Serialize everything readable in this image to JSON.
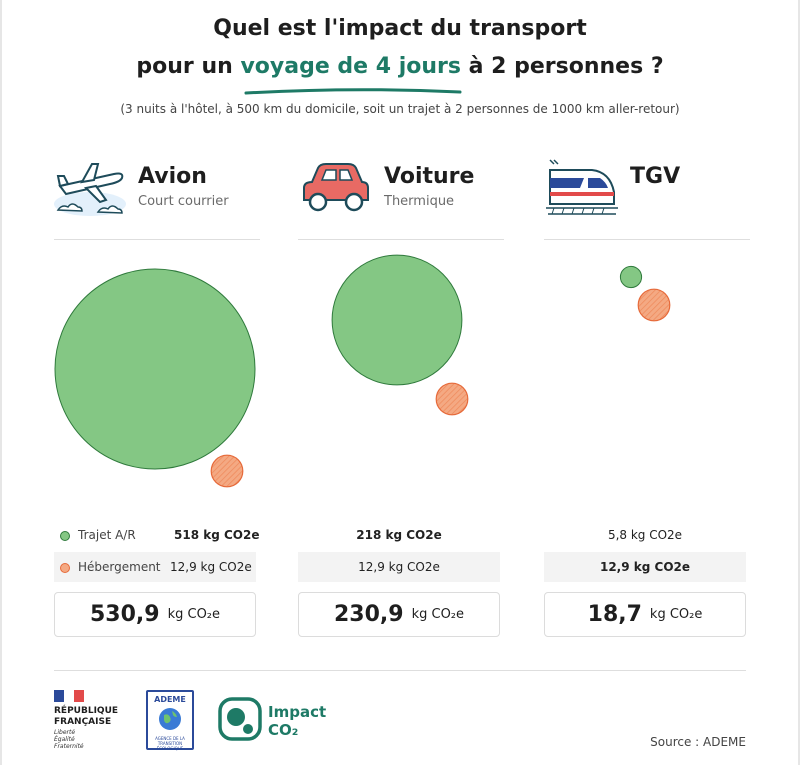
{
  "header": {
    "title_line1": "Quel est l'impact du transport",
    "title_line2_pre": "pour un ",
    "title_line2_highlight": "voyage de 4 jours",
    "title_line2_post": " à 2 personnes ?",
    "subtitle": "(3 nuits à l'hôtel, à 500 km du domicile, soit un trajet à 2 personnes de 1000 km aller-retour)"
  },
  "legend": {
    "trip": "Trajet A/R",
    "lodging": "Hébergement"
  },
  "colors": {
    "trip_fill": "#84c784",
    "trip_stroke": "#2f7a3c",
    "lodging_fill": "#f4a983",
    "lodging_stroke": "#e66a3a",
    "accent": "#1e7a66"
  },
  "chart_data": {
    "type": "bubble",
    "unit": "kg CO2e",
    "series": [
      {
        "name": "Trajet A/R",
        "values": [
          518,
          218,
          5.8
        ]
      },
      {
        "name": "Hébergement",
        "values": [
          12.9,
          12.9,
          12.9
        ]
      }
    ],
    "categories": [
      "Avion",
      "Voiture",
      "TGV"
    ],
    "columns": [
      {
        "name": "Avion",
        "subtitle": "Court courrier",
        "icon": "plane-icon",
        "trip_value": 518,
        "trip_label": "518 kg CO2e",
        "lodging_value": 12.9,
        "lodging_label": "12,9 kg CO2e",
        "total_number": "530,9",
        "total_unit": "kg CO₂e"
      },
      {
        "name": "Voiture",
        "subtitle": "Thermique",
        "icon": "car-icon",
        "trip_value": 218,
        "trip_label": "218 kg CO2e",
        "lodging_value": 12.9,
        "lodging_label": "12,9 kg CO2e",
        "total_number": "230,9",
        "total_unit": "kg CO₂e"
      },
      {
        "name": "TGV",
        "subtitle": "",
        "icon": "train-icon",
        "trip_value": 5.8,
        "trip_label": "5,8 kg CO2e",
        "lodging_value": 12.9,
        "lodging_label": "12,9 kg CO2e",
        "total_number": "18,7",
        "total_unit": "kg CO₂e"
      }
    ]
  },
  "footer": {
    "rf_line1": "RÉPUBLIQUE",
    "rf_line2": "FRANÇAISE",
    "rf_motto1": "Liberté",
    "rf_motto2": "Égalité",
    "rf_motto3": "Fraternité",
    "ademe": "ADEME",
    "ademe_sub": "AGENCE DE LA TRANSITION ÉCOLOGIQUE",
    "impact_line1": "Impact",
    "impact_line2": "CO₂",
    "source": "Source : ADEME"
  }
}
